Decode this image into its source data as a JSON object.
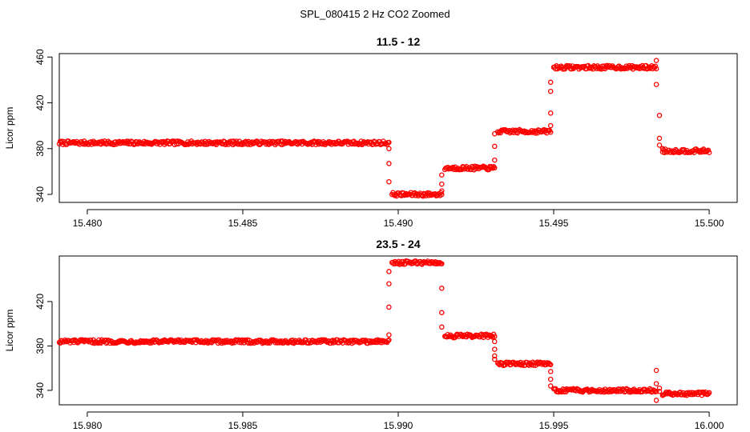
{
  "figure": {
    "title": "SPL_080415  2 Hz CO2 Zoomed",
    "point_color": "#ff0000"
  },
  "chart_data": [
    {
      "type": "scatter",
      "title": "11.5 - 12",
      "xlabel": "",
      "ylabel": "Licor ppm",
      "xlim": [
        15.4791,
        15.5009
      ],
      "ylim": [
        333,
        463
      ],
      "xticks": [
        15.48,
        15.485,
        15.49,
        15.495,
        15.5
      ],
      "xtick_labels": [
        "15.480",
        "15.485",
        "15.490",
        "15.495",
        "15.500"
      ],
      "yticks": [
        340,
        380,
        420,
        460
      ],
      "ytick_labels": [
        "340",
        "380",
        "420",
        "460"
      ],
      "grid": false,
      "marker": "open-circle",
      "segments": [
        {
          "x_start": 15.4791,
          "x_end": 15.4897,
          "y": 385
        },
        {
          "x_start": 15.4898,
          "x_end": 15.4914,
          "y": 340
        },
        {
          "x_start": 15.4915,
          "x_end": 15.4931,
          "y": 363
        },
        {
          "x_start": 15.4932,
          "x_end": 15.4949,
          "y": 395
        },
        {
          "x_start": 15.495,
          "x_end": 15.4983,
          "y": 451
        },
        {
          "x_start": 15.4985,
          "x_end": 15.5,
          "y": 378
        }
      ],
      "transition_points": [
        {
          "x": 15.4897,
          "y": 380
        },
        {
          "x": 15.4897,
          "y": 367
        },
        {
          "x": 15.4897,
          "y": 351
        },
        {
          "x": 15.4914,
          "x_note": "",
          "y": 343
        },
        {
          "x": 15.4914,
          "y": 349
        },
        {
          "x": 15.4914,
          "y": 357
        },
        {
          "x": 15.4931,
          "y": 370
        },
        {
          "x": 15.4931,
          "y": 382
        },
        {
          "x": 15.4931,
          "y": 393
        },
        {
          "x": 15.4949,
          "y": 400
        },
        {
          "x": 15.4949,
          "y": 411
        },
        {
          "x": 15.4949,
          "y": 430
        },
        {
          "x": 15.4949,
          "y": 438
        },
        {
          "x": 15.4983,
          "y": 457
        },
        {
          "x": 15.4983,
          "y": 436
        },
        {
          "x": 15.4984,
          "y": 409
        },
        {
          "x": 15.4984,
          "y": 389
        },
        {
          "x": 15.4984,
          "y": 383
        },
        {
          "x": 15.4985,
          "y": 380
        }
      ]
    },
    {
      "type": "scatter",
      "title": "23.5 - 24",
      "xlabel": "",
      "ylabel": "Licor ppm",
      "xlim": [
        15.9791,
        16.0009
      ],
      "ylim": [
        327,
        461
      ],
      "xticks": [
        15.98,
        15.985,
        15.99,
        15.995,
        16.0
      ],
      "xtick_labels": [
        "15.980",
        "15.985",
        "15.990",
        "15.995",
        "16.000"
      ],
      "yticks": [
        340,
        380,
        420
      ],
      "ytick_labels": [
        "340",
        "380",
        "420"
      ],
      "grid": false,
      "marker": "open-circle",
      "segments": [
        {
          "x_start": 15.9791,
          "x_end": 15.9897,
          "y": 384
        },
        {
          "x_start": 15.9898,
          "x_end": 15.9914,
          "y": 455
        },
        {
          "x_start": 15.9915,
          "x_end": 15.9931,
          "y": 389
        },
        {
          "x_start": 15.9932,
          "x_end": 15.9949,
          "y": 364
        },
        {
          "x_start": 15.995,
          "x_end": 15.9983,
          "y": 340
        },
        {
          "x_start": 15.9985,
          "x_end": 16.0,
          "y": 337
        }
      ],
      "transition_points": [
        {
          "x": 15.9897,
          "y": 390
        },
        {
          "x": 15.9897,
          "y": 415
        },
        {
          "x": 15.9897,
          "y": 436
        },
        {
          "x": 15.9897,
          "y": 447
        },
        {
          "x": 15.9914,
          "y": 410
        },
        {
          "x": 15.9914,
          "y": 397
        },
        {
          "x": 15.9914,
          "y": 432
        },
        {
          "x": 15.9931,
          "y": 384
        },
        {
          "x": 15.9931,
          "y": 377
        },
        {
          "x": 15.9931,
          "y": 371
        },
        {
          "x": 15.9931,
          "y": 368
        },
        {
          "x": 15.9949,
          "y": 357
        },
        {
          "x": 15.9949,
          "y": 350
        },
        {
          "x": 15.9949,
          "y": 344
        },
        {
          "x": 15.9983,
          "y": 358
        },
        {
          "x": 15.9983,
          "y": 346
        },
        {
          "x": 15.9983,
          "y": 331
        },
        {
          "x": 15.9984,
          "y": 342
        },
        {
          "x": 15.9984,
          "y": 339
        }
      ]
    }
  ]
}
